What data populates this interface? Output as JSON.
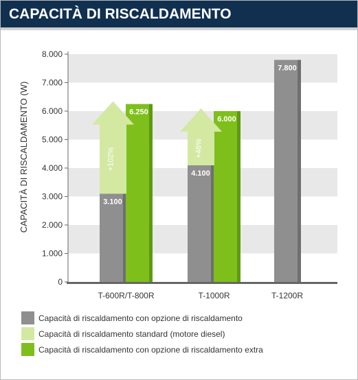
{
  "header": {
    "title": "CAPACITÀ DI RISCALDAMENTO"
  },
  "colors": {
    "header_bg": "#113050",
    "heating_option": "#8f8f8f",
    "standard": "#d3e9a2",
    "extra": "#7fbf1c"
  },
  "chart_data": {
    "type": "bar",
    "title": "CAPACITÀ DI RISCALDAMENTO",
    "xlabel": "",
    "ylabel": "CAPACITÀ DI RISCALDAMENTO (W)",
    "ylim": [
      0,
      8000
    ],
    "y_ticks": [
      "0",
      "1.000",
      "2.000",
      "3.000",
      "4.000",
      "5.000",
      "6.000",
      "7.000",
      "8.000"
    ],
    "y_tick_values": [
      0,
      1000,
      2000,
      3000,
      4000,
      5000,
      6000,
      7000,
      8000
    ],
    "grid": "alternating horizontal bands",
    "legend_position": "bottom",
    "categories": [
      "T-600R/T-800R",
      "T-1000R",
      "T-1200R"
    ],
    "series": [
      {
        "name": "Capacità di riscaldamento con opzione di riscaldamento",
        "values": [
          3100,
          4100,
          7800
        ],
        "labels": [
          "3.100",
          "4.100",
          "7.800"
        ]
      },
      {
        "name": "Capacità di riscaldamento standard (motore diesel)",
        "values": [
          6250,
          6000,
          null
        ]
      },
      {
        "name": "Capacità di riscaldamento con opzione di riscaldamento extra",
        "values": [
          6250,
          6000,
          null
        ],
        "labels": [
          "6.250",
          "6.000",
          ""
        ]
      }
    ],
    "annotations": [
      {
        "category": "T-600R/T-800R",
        "text": "+102%",
        "from": 3100,
        "to": 6250
      },
      {
        "category": "T-1000R",
        "text": "+46%",
        "from": 4100,
        "to": 6000
      }
    ]
  },
  "legend": {
    "items": [
      {
        "label": "Capacità di riscaldamento con opzione di riscaldamento",
        "color": "#8f8f8f"
      },
      {
        "label": "Capacità di riscaldamento standard (motore diesel)",
        "color": "#d3e9a2"
      },
      {
        "label": "Capacità di riscaldamento con opzione di riscaldamento extra",
        "color": "#7fbf1c"
      }
    ]
  }
}
